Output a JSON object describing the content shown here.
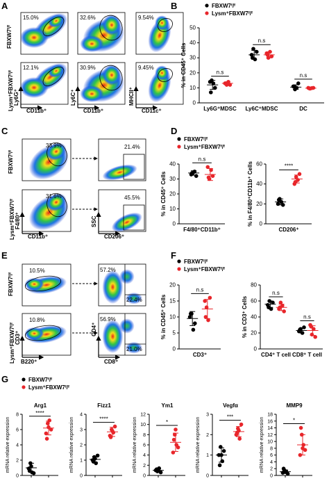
{
  "colors": {
    "ctrl": "#000000",
    "ko": "#e8262b"
  },
  "panelA": {
    "label": "A",
    "rows": [
      "FBXW7ᶠ/ᶠ",
      "Lysm⁺FBXW7ᶠ/ᶠ"
    ],
    "xlabels": [
      "CD11b⁺",
      "CD11b⁺",
      "CD11c⁺"
    ],
    "ylabels": [
      "Ly6G⁺",
      "Ly6C⁺",
      "MHCII⁺"
    ],
    "pct": [
      [
        "15.0%",
        "32.6%",
        "9.54%"
      ],
      [
        "12.1%",
        "30.9%",
        "9.45%"
      ]
    ]
  },
  "panelC": {
    "label": "C",
    "rows": [
      "FBXW7ᶠ/ᶠ",
      "Lysm⁺FBXW7ᶠ/ᶠ"
    ],
    "pct_left": [
      "33.9%",
      "31.6%"
    ],
    "pct_right": [
      "21.4%",
      "45.5%"
    ],
    "xlab_left": "CD11b⁺",
    "ylab_left": "F4/80⁺",
    "xlab_right": "CD206⁺",
    "ylab_right": "SSC"
  },
  "panelE": {
    "label": "E",
    "rows": [
      "FBXW7ᶠ/ᶠ",
      "Lysm⁺FBXW7ᶠ/ᶠ"
    ],
    "pct_left": [
      "10.5%",
      "10.8%"
    ],
    "pct_right_top": [
      "57.2%",
      "56.9%"
    ],
    "pct_right_bot": [
      "22.4%",
      "21.0%"
    ],
    "xlab_left": "B220⁺",
    "ylab_left": "CD3⁺",
    "xlab_right": "CD8⁺",
    "ylab_right": "CD4⁺"
  },
  "legend": {
    "ctrl": "FBXW7ᶠ/ᶠ",
    "ko": "Lysm⁺FBXW7ᶠ/ᶠ"
  },
  "chart_data": [
    {
      "id": "B",
      "type": "scatter",
      "panel": "B",
      "ylabel": "% in CD45⁺ Cells",
      "ylim": [
        0,
        50
      ],
      "yticks": [
        0,
        10,
        20,
        30,
        40,
        50
      ],
      "categories": [
        "Ly6G⁺MDSC",
        "Ly6C⁺MDSC",
        "DC"
      ],
      "sig": [
        "n.s",
        "n.s",
        "n.s"
      ],
      "series": [
        {
          "name": "FBXW7ᶠ/ᶠ",
          "values": [
            [
              14,
              15,
              13,
              10,
              7
            ],
            [
              32,
              36,
              29,
              34,
              30
            ],
            [
              11,
              9,
              10,
              13,
              11
            ]
          ],
          "mean": [
            12,
            32,
            10.5
          ],
          "sd": [
            3,
            3,
            1.5
          ]
        },
        {
          "name": "Lysm⁺FBXW7ᶠ/ᶠ",
          "values": [
            [
              13,
              12,
              14,
              12,
              13
            ],
            [
              33,
              30,
              34,
              31,
              32
            ],
            [
              10,
              9.5,
              9.8,
              10,
              9.7
            ]
          ],
          "mean": [
            13,
            32,
            9.8
          ],
          "sd": [
            1,
            2,
            0.3
          ]
        }
      ]
    },
    {
      "id": "D1",
      "type": "scatter",
      "panel": "D",
      "ylabel": "% in CD45⁺ Cells",
      "ylim": [
        0,
        40
      ],
      "yticks": [
        0,
        10,
        20,
        30,
        40
      ],
      "categories": [
        "F4/80⁺CD11b⁺"
      ],
      "sig": [
        "n.s"
      ],
      "series": [
        {
          "name": "FBXW7ᶠ/ᶠ",
          "values": [
            [
              33,
              34,
              35,
              32,
              34
            ]
          ],
          "mean": [
            34
          ],
          "sd": [
            1.5
          ]
        },
        {
          "name": "Lysm⁺FBXW7ᶠ/ᶠ",
          "values": [
            [
              38,
              30,
              36,
              32,
              31
            ]
          ],
          "mean": [
            33
          ],
          "sd": [
            4
          ]
        }
      ]
    },
    {
      "id": "D2",
      "type": "scatter",
      "panel": "D",
      "ylabel": "% in F4/80⁺CD11b⁺ Cells",
      "ylim": [
        0,
        60
      ],
      "yticks": [
        0,
        20,
        40,
        60
      ],
      "categories": [
        "CD206⁺"
      ],
      "sig": [
        "****"
      ],
      "series": [
        {
          "name": "FBXW7ᶠ/ᶠ",
          "values": [
            [
              20,
              25,
              22,
              19,
              24
            ]
          ],
          "mean": [
            22
          ],
          "sd": [
            3
          ]
        },
        {
          "name": "Lysm⁺FBXW7ᶠ/ᶠ",
          "values": [
            [
              40,
              47,
              44,
              50,
              42
            ]
          ],
          "mean": [
            45
          ],
          "sd": [
            4
          ]
        }
      ]
    },
    {
      "id": "F1",
      "type": "scatter",
      "panel": "F",
      "ylabel": "% in CD45⁺ Cells",
      "ylim": [
        0,
        20
      ],
      "yticks": [
        0,
        5,
        10,
        15,
        20
      ],
      "categories": [
        "CD3⁺"
      ],
      "sig": [
        "n.s"
      ],
      "series": [
        {
          "name": "FBXW7ᶠ/ᶠ",
          "values": [
            [
              10,
              11,
              6,
              8,
              11
            ]
          ],
          "mean": [
            9.5
          ],
          "sd": [
            2.2
          ]
        },
        {
          "name": "Lysm⁺FBXW7ᶠ/ᶠ",
          "values": [
            [
              15,
              13,
              9,
              16,
              10
            ]
          ],
          "mean": [
            12.5
          ],
          "sd": [
            3
          ]
        }
      ]
    },
    {
      "id": "F2",
      "type": "scatter",
      "panel": "F",
      "ylabel": "% in CD3⁺ Cells",
      "ylim": [
        0,
        80
      ],
      "yticks": [
        0,
        20,
        40,
        60,
        80
      ],
      "categories": [
        "CD4⁺ T cell",
        "CD8⁺ T cell"
      ],
      "sig": [
        "n.s",
        "n.s"
      ],
      "series": [
        {
          "name": "FBXW7ᶠ/ᶠ",
          "values": [
            [
              55,
              60,
              50,
              58,
              52
            ],
            [
              22,
              25,
              20,
              27,
              24
            ]
          ],
          "mean": [
            56,
            23
          ],
          "sd": [
            4,
            3
          ]
        },
        {
          "name": "Lysm⁺FBXW7ᶠ/ᶠ",
          "values": [
            [
              50,
              58,
              54,
              47,
              52
            ],
            [
              30,
              18,
              25,
              15,
              28
            ]
          ],
          "mean": [
            52,
            23
          ],
          "sd": [
            4,
            6
          ]
        }
      ]
    },
    {
      "id": "G1",
      "type": "scatter",
      "panel": "G",
      "title": "Arg1",
      "ylabel": "mRNA  relative expression",
      "ylim": [
        0,
        8
      ],
      "yticks": [
        0,
        2,
        4,
        6,
        8
      ],
      "sig": "****",
      "series": [
        {
          "name": "FBXW7ᶠ/ᶠ",
          "values": [
            0.9,
            1.6,
            0.4,
            0.3,
            0.6,
            1.2
          ],
          "mean": [
            1
          ],
          "sd": [
            0.6
          ]
        },
        {
          "name": "Lysm⁺FBXW7ᶠ/ᶠ",
          "values": [
            5.5,
            6.8,
            7.2,
            6.0,
            4.8,
            6.3
          ],
          "mean": [
            6.2
          ],
          "sd": [
            0.9
          ]
        }
      ]
    },
    {
      "id": "G2",
      "type": "scatter",
      "panel": "G",
      "title": "Fizz1",
      "ylabel": "mRNA  relative expression",
      "ylim": [
        0,
        4
      ],
      "yticks": [
        0,
        1,
        2,
        3,
        4
      ],
      "sig": "****",
      "series": [
        {
          "name": "FBXW7ᶠ/ᶠ",
          "values": [
            1.0,
            1.2,
            0.8,
            1.3,
            0.9,
            1.1
          ],
          "mean": [
            1.05
          ],
          "sd": [
            0.2
          ]
        },
        {
          "name": "Lysm⁺FBXW7ᶠ/ᶠ",
          "values": [
            2.6,
            3.0,
            2.8,
            3.2,
            2.5,
            2.9
          ],
          "mean": [
            2.85
          ],
          "sd": [
            0.3
          ]
        }
      ]
    },
    {
      "id": "G3",
      "type": "scatter",
      "panel": "G",
      "title": "Ym1",
      "ylabel": "mRNA  relative expression",
      "ylim": [
        0,
        12
      ],
      "yticks": [
        0,
        2,
        4,
        6,
        8,
        10,
        12
      ],
      "sig": "*",
      "series": [
        {
          "name": "FBXW7ᶠ/ᶠ",
          "values": [
            1.0,
            0.8,
            1.4,
            0.6,
            1.2,
            0.9
          ],
          "mean": [
            1
          ],
          "sd": [
            0.3
          ]
        },
        {
          "name": "Lysm⁺FBXW7ᶠ/ᶠ",
          "values": [
            4.5,
            8.0,
            6.0,
            5.5,
            7.0,
            9.0
          ],
          "mean": [
            6.5
          ],
          "sd": [
            1.8
          ]
        }
      ]
    },
    {
      "id": "G4",
      "type": "scatter",
      "panel": "G",
      "title": "Vegfα",
      "ylabel": "mRNA  relative expression",
      "ylim": [
        0,
        3
      ],
      "yticks": [
        0,
        1,
        2,
        3
      ],
      "sig": "***",
      "series": [
        {
          "name": "FBXW7ᶠ/ᶠ",
          "values": [
            1.0,
            1.4,
            0.7,
            1.2,
            0.5,
            1.0
          ],
          "mean": [
            1
          ],
          "sd": [
            0.35
          ]
        },
        {
          "name": "Lysm⁺FBXW7ᶠ/ᶠ",
          "values": [
            2.0,
            2.3,
            1.8,
            2.5,
            2.1,
            2.2
          ],
          "mean": [
            2.15
          ],
          "sd": [
            0.25
          ]
        }
      ]
    },
    {
      "id": "G5",
      "type": "scatter",
      "panel": "G",
      "title": "MMP9",
      "ylabel": "mRNA  relative expression",
      "ylim": [
        0,
        18
      ],
      "yticks": [
        0,
        2,
        4,
        6,
        8,
        10,
        12,
        14,
        16,
        18
      ],
      "sig": "*",
      "series": [
        {
          "name": "FBXW7ᶠ/ᶠ",
          "values": [
            0.8,
            1.5,
            1.2,
            0.5,
            2.0,
            1.0
          ],
          "mean": [
            1.1
          ],
          "sd": [
            0.5
          ]
        },
        {
          "name": "Lysm⁺FBXW7ᶠ/ᶠ",
          "values": [
            6.0,
            12.0,
            9.0,
            7.5,
            14.0,
            8.0
          ],
          "mean": [
            9
          ],
          "sd": [
            3
          ]
        }
      ]
    }
  ]
}
